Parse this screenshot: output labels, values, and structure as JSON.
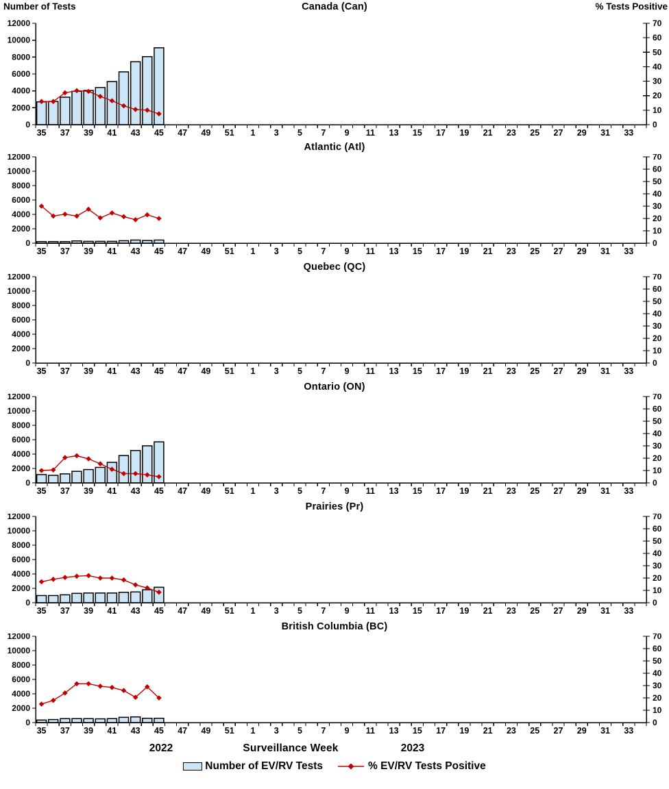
{
  "axes": {
    "left_title": "Number of Tests",
    "right_title": "% Tests Positive",
    "left_ticks": [
      0,
      2000,
      4000,
      6000,
      8000,
      10000,
      12000
    ],
    "right_ticks": [
      0,
      10,
      20,
      30,
      40,
      50,
      60,
      70
    ],
    "left_max": 12000,
    "right_max": 70,
    "x_first_week": 35,
    "x_last_week_2022": 52,
    "x_last_week_2023": 34,
    "x_tick_labels": [
      "35",
      "37",
      "39",
      "41",
      "43",
      "45",
      "47",
      "49",
      "51",
      "1",
      "3",
      "5",
      "7",
      "9",
      "11",
      "13",
      "15",
      "17",
      "19",
      "21",
      "23",
      "25",
      "27",
      "29",
      "31",
      "33"
    ]
  },
  "footer": {
    "year_left": "2022",
    "x_axis_label": "Surveillance Week",
    "year_right": "2023"
  },
  "legend": [
    {
      "label": "Number of EV/RV Tests",
      "swatch": "bar"
    },
    {
      "label": "% EV/RV Tests Positive",
      "swatch": "line"
    }
  ],
  "colors": {
    "bar_fill": "#CDE6F7",
    "bar_border": "#000000",
    "line": "#C00000"
  },
  "chart_data": [
    {
      "type": "bar",
      "title": "Canada (Can)",
      "x_weeks": [
        35,
        36,
        37,
        38,
        39,
        40,
        41,
        42,
        43,
        44,
        45
      ],
      "series": [
        {
          "name": "Number of EV/RV Tests",
          "type": "bar",
          "axis": "left",
          "values": [
            2700,
            2750,
            3250,
            3950,
            4050,
            4400,
            5100,
            6250,
            7450,
            8050,
            9100
          ]
        },
        {
          "name": "% EV/RV Tests Positive",
          "type": "line",
          "axis": "right",
          "values": [
            16,
            16,
            22,
            23.5,
            23,
            19.5,
            16.5,
            13,
            10.5,
            10,
            7.5
          ]
        }
      ],
      "xlabel": "Surveillance Week",
      "ylim_left": [
        0,
        12000
      ],
      "ylim_right": [
        0,
        70
      ]
    },
    {
      "type": "bar",
      "title": "Atlantic (Atl)",
      "x_weeks": [
        35,
        36,
        37,
        38,
        39,
        40,
        41,
        42,
        43,
        44,
        45
      ],
      "series": [
        {
          "name": "Number of EV/RV Tests",
          "type": "bar",
          "axis": "left",
          "values": [
            220,
            220,
            220,
            310,
            250,
            250,
            250,
            340,
            430,
            370,
            430
          ]
        },
        {
          "name": "% EV/RV Tests Positive",
          "type": "line",
          "axis": "right",
          "values": [
            30,
            22,
            23.5,
            22,
            27.5,
            20.5,
            24.5,
            21.5,
            19,
            23,
            20
          ]
        }
      ],
      "xlabel": "Surveillance Week",
      "ylim_left": [
        0,
        12000
      ],
      "ylim_right": [
        0,
        70
      ]
    },
    {
      "type": "bar",
      "title": "Quebec (QC)",
      "x_weeks": [],
      "series": [
        {
          "name": "Number of EV/RV Tests",
          "type": "bar",
          "axis": "left",
          "values": []
        },
        {
          "name": "% EV/RV Tests Positive",
          "type": "line",
          "axis": "right",
          "values": []
        }
      ],
      "xlabel": "Surveillance Week",
      "ylim_left": [
        0,
        12000
      ],
      "ylim_right": [
        0,
        70
      ]
    },
    {
      "type": "bar",
      "title": "Ontario (ON)",
      "x_weeks": [
        35,
        36,
        37,
        38,
        39,
        40,
        41,
        42,
        43,
        44,
        45
      ],
      "series": [
        {
          "name": "Number of EV/RV Tests",
          "type": "bar",
          "axis": "left",
          "values": [
            1150,
            1050,
            1250,
            1600,
            1850,
            2150,
            2850,
            3800,
            4500,
            5150,
            5700
          ]
        },
        {
          "name": "% EV/RV Tests Positive",
          "type": "line",
          "axis": "right",
          "values": [
            10,
            10.5,
            20.5,
            22,
            19.5,
            15.5,
            11,
            7.5,
            7.5,
            6.5,
            5
          ]
        }
      ],
      "xlabel": "Surveillance Week",
      "ylim_left": [
        0,
        12000
      ],
      "ylim_right": [
        0,
        70
      ]
    },
    {
      "type": "bar",
      "title": "Prairies (Pr)",
      "x_weeks": [
        35,
        36,
        37,
        38,
        39,
        40,
        41,
        42,
        43,
        44,
        45
      ],
      "series": [
        {
          "name": "Number of EV/RV Tests",
          "type": "bar",
          "axis": "left",
          "values": [
            1000,
            1000,
            1100,
            1300,
            1350,
            1350,
            1350,
            1450,
            1500,
            1800,
            2150
          ]
        },
        {
          "name": "% EV/RV Tests Positive",
          "type": "line",
          "axis": "right",
          "values": [
            17,
            19,
            20.5,
            21.5,
            22,
            20,
            20,
            18.5,
            14.5,
            12,
            8.5
          ]
        }
      ],
      "xlabel": "Surveillance Week",
      "ylim_left": [
        0,
        12000
      ],
      "ylim_right": [
        0,
        70
      ]
    },
    {
      "type": "bar",
      "title": "British Columbia (BC)",
      "x_weeks": [
        35,
        36,
        37,
        38,
        39,
        40,
        41,
        42,
        43,
        44,
        45
      ],
      "series": [
        {
          "name": "Number of EV/RV Tests",
          "type": "bar",
          "axis": "left",
          "values": [
            350,
            420,
            550,
            550,
            550,
            520,
            550,
            730,
            790,
            600,
            600
          ]
        },
        {
          "name": "% EV/RV Tests Positive",
          "type": "line",
          "axis": "right",
          "values": [
            15,
            18,
            24,
            31.5,
            31.5,
            29.5,
            28.5,
            26,
            20.5,
            29,
            20
          ]
        }
      ],
      "xlabel": "Surveillance Week",
      "ylim_left": [
        0,
        12000
      ],
      "ylim_right": [
        0,
        70
      ]
    }
  ]
}
